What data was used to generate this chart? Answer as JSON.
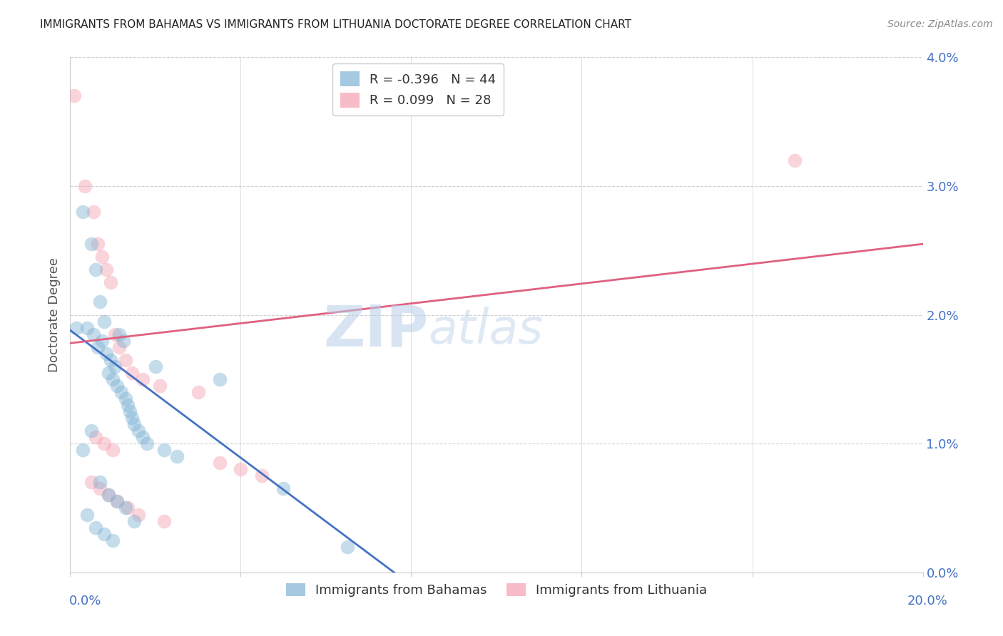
{
  "title": "IMMIGRANTS FROM BAHAMAS VS IMMIGRANTS FROM LITHUANIA DOCTORATE DEGREE CORRELATION CHART",
  "source": "Source: ZipAtlas.com",
  "ylabel": "Doctorate Degree",
  "ytick_labels": [
    "0.0%",
    "1.0%",
    "2.0%",
    "3.0%",
    "4.0%"
  ],
  "ytick_values": [
    0.0,
    1.0,
    2.0,
    3.0,
    4.0
  ],
  "xlim": [
    0.0,
    20.0
  ],
  "ylim": [
    0.0,
    4.0
  ],
  "legend_entries": [
    {
      "label": "Immigrants from Bahamas",
      "color": "#a8c4e0",
      "R": "-0.396",
      "N": "44"
    },
    {
      "label": "Immigrants from Lithuania",
      "color": "#f4a0b0",
      "R": "0.099",
      "N": "28"
    }
  ],
  "watermark_zip": "ZIP",
  "watermark_atlas": "atlas",
  "blue_scatter_x": [
    0.15,
    0.3,
    0.4,
    0.5,
    0.55,
    0.6,
    0.65,
    0.7,
    0.75,
    0.8,
    0.85,
    0.9,
    0.95,
    1.0,
    1.05,
    1.1,
    1.15,
    1.2,
    1.25,
    1.3,
    1.35,
    1.4,
    1.45,
    1.5,
    1.6,
    1.7,
    1.8,
    2.0,
    2.2,
    2.5,
    3.5,
    5.0,
    0.3,
    0.5,
    0.7,
    0.9,
    1.1,
    1.3,
    1.5,
    0.4,
    0.6,
    0.8,
    6.5,
    1.0
  ],
  "blue_scatter_y": [
    1.9,
    2.8,
    1.9,
    2.55,
    1.85,
    2.35,
    1.75,
    2.1,
    1.8,
    1.95,
    1.7,
    1.55,
    1.65,
    1.5,
    1.6,
    1.45,
    1.85,
    1.4,
    1.8,
    1.35,
    1.3,
    1.25,
    1.2,
    1.15,
    1.1,
    1.05,
    1.0,
    1.6,
    0.95,
    0.9,
    1.5,
    0.65,
    0.95,
    1.1,
    0.7,
    0.6,
    0.55,
    0.5,
    0.4,
    0.45,
    0.35,
    0.3,
    0.2,
    0.25
  ],
  "pink_scatter_x": [
    0.1,
    0.35,
    0.55,
    0.65,
    0.75,
    0.85,
    0.95,
    1.05,
    1.15,
    1.3,
    1.45,
    1.7,
    2.1,
    3.0,
    3.5,
    4.0,
    4.5,
    0.5,
    0.7,
    0.9,
    1.1,
    1.35,
    1.6,
    2.2,
    0.6,
    0.8,
    1.0,
    17.0
  ],
  "pink_scatter_y": [
    3.7,
    3.0,
    2.8,
    2.55,
    2.45,
    2.35,
    2.25,
    1.85,
    1.75,
    1.65,
    1.55,
    1.5,
    1.45,
    1.4,
    0.85,
    0.8,
    0.75,
    0.7,
    0.65,
    0.6,
    0.55,
    0.5,
    0.45,
    0.4,
    1.05,
    1.0,
    0.95,
    3.2
  ],
  "blue_line_x": [
    0.0,
    8.0
  ],
  "blue_line_y": [
    1.88,
    -0.1
  ],
  "pink_line_x": [
    0.0,
    20.0
  ],
  "pink_line_y": [
    1.78,
    2.55
  ],
  "dot_size": 200,
  "dot_alpha": 0.45,
  "background_color": "#ffffff",
  "grid_color": "#d0d0d0",
  "title_color": "#222222",
  "tick_label_color": "#4472c4",
  "blue_color": "#7fb3d3",
  "pink_color": "#f4a0b0",
  "blue_line_color": "#4472c4",
  "pink_line_color": "#e06080",
  "source_color": "#888888",
  "ylabel_color": "#555555"
}
